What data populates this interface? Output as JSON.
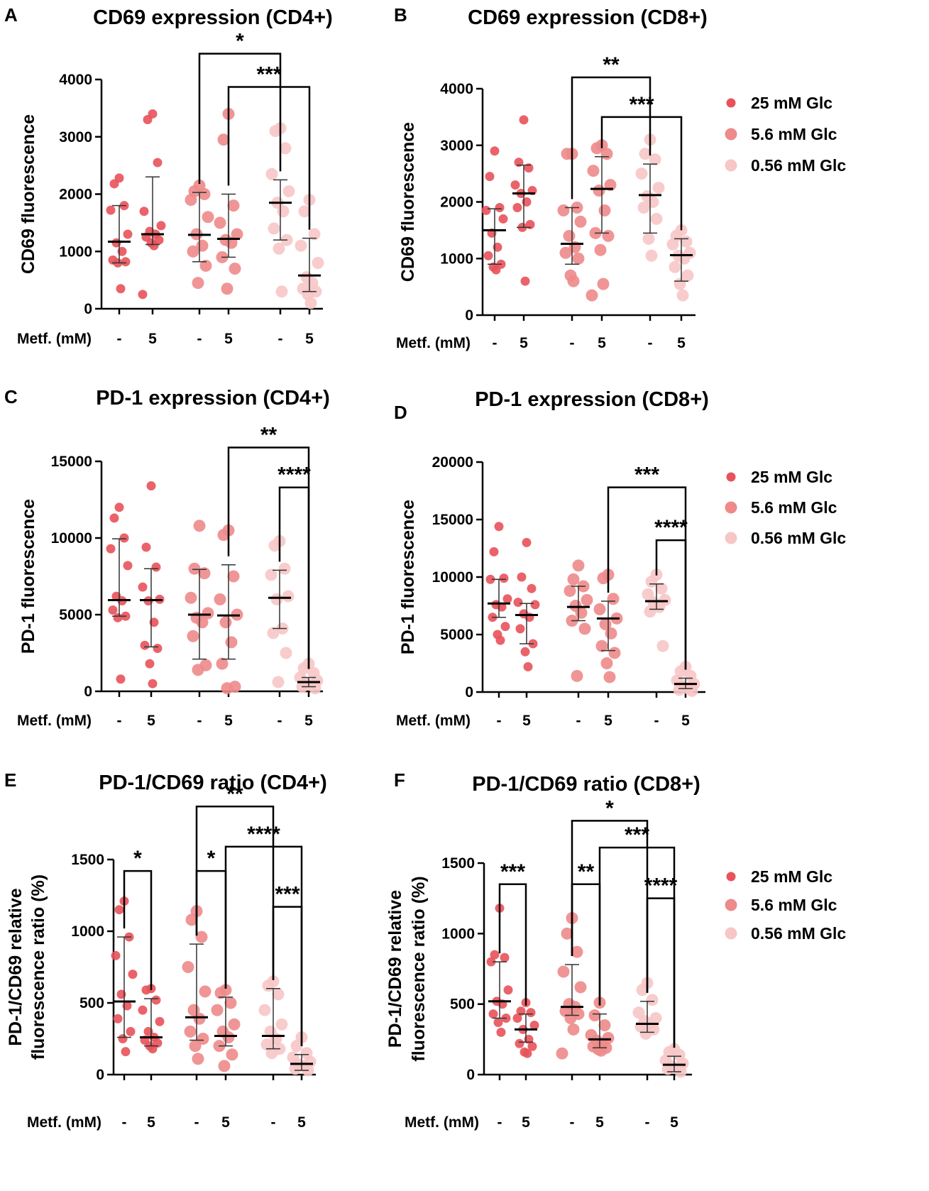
{
  "colors": {
    "g25": "#e8525a",
    "g56": "#ee8a8a",
    "g056": "#f7c6c6",
    "median": "#000000",
    "err": "#333333"
  },
  "legend": {
    "items": [
      {
        "label": "25 mM Glc",
        "color": "#e8525a"
      },
      {
        "label": "5.6 mM Glc",
        "color": "#ee8a8a"
      },
      {
        "label": "0.56 mM Glc",
        "color": "#f7c6c6"
      }
    ]
  },
  "chart_data": [
    {
      "type": "scatter",
      "letter": "A",
      "title": "CD69 expression (CD4+)",
      "ylabel": "CD69 fluorescence",
      "ylabel2": "",
      "ylim": [
        0,
        4000
      ],
      "yticks": [
        0,
        1000,
        2000,
        3000,
        4000
      ],
      "yticklabels": [
        "0",
        "1000",
        "2000",
        "3000",
        "4000"
      ],
      "metf_label": "Metf. (mM)",
      "categories": [
        "-",
        "5",
        "-",
        "5",
        "-",
        "5"
      ],
      "groups": [
        {
          "glc": "25 mM Glc",
          "metf": "-",
          "median": 1170,
          "err": [
            800,
            1800
          ],
          "points": [
            2280,
            2180,
            1800,
            1720,
            1300,
            1150,
            1000,
            850,
            820,
            800,
            350
          ]
        },
        {
          "glc": "25 mM Glc",
          "metf": "5",
          "median": 1300,
          "err": [
            1120,
            2300
          ],
          "points": [
            3400,
            3300,
            2550,
            1700,
            1450,
            1350,
            1300,
            1250,
            1200,
            1150,
            1100,
            250
          ]
        },
        {
          "glc": "5.6 mM Glc",
          "metf": "-",
          "median": 1290,
          "err": [
            820,
            2030
          ],
          "points": [
            2150,
            2050,
            2000,
            1900,
            1600,
            1300,
            1100,
            1000,
            750,
            450
          ]
        },
        {
          "glc": "5.6 mM Glc",
          "metf": "5",
          "median": 1220,
          "err": [
            900,
            2000
          ],
          "points": [
            3400,
            2950,
            1800,
            1500,
            1300,
            1200,
            1150,
            900,
            700,
            350
          ]
        },
        {
          "glc": "0.56 mM Glc",
          "metf": "-",
          "median": 1850,
          "err": [
            1200,
            2250
          ],
          "points": [
            3150,
            3100,
            2800,
            2350,
            2050,
            1850,
            1700,
            1400,
            1200,
            1050,
            300
          ]
        },
        {
          "glc": "0.56 mM Glc",
          "metf": "5",
          "median": 580,
          "err": [
            300,
            1230
          ],
          "points": [
            1900,
            1700,
            1300,
            1100,
            800,
            550,
            450,
            350,
            300,
            250,
            100
          ]
        }
      ],
      "brackets": [
        {
          "from": 2,
          "to": 4,
          "y": 4450,
          "label": "*"
        },
        {
          "from": 3,
          "to": 5,
          "y": 3870,
          "label": "***"
        }
      ],
      "legend": false
    },
    {
      "type": "scatter",
      "letter": "B",
      "title": "CD69 expression (CD8+)",
      "ylabel": "CD69 fluorescence",
      "ylabel2": "",
      "ylim": [
        0,
        4000
      ],
      "yticks": [
        0,
        1000,
        2000,
        3000,
        4000
      ],
      "yticklabels": [
        "0",
        "1000",
        "2000",
        "3000",
        "4000"
      ],
      "metf_label": "Metf. (mM)",
      "categories": [
        "-",
        "5",
        "-",
        "5",
        "-",
        "5"
      ],
      "groups": [
        {
          "glc": "25 mM Glc",
          "metf": "-",
          "median": 1500,
          "err": [
            900,
            1880
          ],
          "points": [
            2900,
            2450,
            1900,
            1850,
            1700,
            1450,
            1200,
            1050,
            900,
            850,
            800
          ]
        },
        {
          "glc": "25 mM Glc",
          "metf": "5",
          "median": 2150,
          "err": [
            1550,
            2650
          ],
          "points": [
            3450,
            2700,
            2600,
            2300,
            2200,
            2150,
            2000,
            1900,
            1600,
            1550,
            600
          ]
        },
        {
          "glc": "5.6 mM Glc",
          "metf": "-",
          "median": 1260,
          "err": [
            900,
            1900
          ],
          "points": [
            2850,
            2850,
            1900,
            1850,
            1650,
            1400,
            1200,
            1100,
            1000,
            700,
            600
          ]
        },
        {
          "glc": "5.6 mM Glc",
          "metf": "5",
          "median": 2230,
          "err": [
            1450,
            2800
          ],
          "points": [
            3000,
            2950,
            2850,
            2550,
            2300,
            2200,
            1850,
            1450,
            1400,
            1150,
            550,
            350
          ]
        },
        {
          "glc": "0.56 mM Glc",
          "metf": "-",
          "median": 2120,
          "err": [
            1450,
            2670
          ],
          "points": [
            3100,
            2850,
            2750,
            2500,
            2250,
            2100,
            2000,
            1900,
            1700,
            1350,
            1050
          ]
        },
        {
          "glc": "0.56 mM Glc",
          "metf": "5",
          "median": 1060,
          "err": [
            600,
            1350
          ],
          "points": [
            1500,
            1400,
            1300,
            1250,
            1100,
            1050,
            1000,
            850,
            700,
            550,
            350
          ]
        }
      ],
      "brackets": [
        {
          "from": 2,
          "to": 4,
          "y": 4200,
          "label": "**"
        },
        {
          "from": 3,
          "to": 5,
          "y": 3500,
          "label": "***"
        }
      ],
      "legend": true
    },
    {
      "type": "scatter",
      "letter": "C",
      "title": "PD-1 expression (CD4+)",
      "ylabel": "PD-1 fluorescence",
      "ylabel2": "",
      "ylim": [
        0,
        15000
      ],
      "yticks": [
        0,
        5000,
        10000,
        15000
      ],
      "yticklabels": [
        "0",
        "5000",
        "10000",
        "15000"
      ],
      "metf_label": "Metf. (mM)",
      "categories": [
        "-",
        "5",
        "-",
        "5",
        "-",
        "5"
      ],
      "groups": [
        {
          "glc": "25 mM Glc",
          "metf": "-",
          "median": 5950,
          "err": [
            4900,
            9950
          ],
          "points": [
            12000,
            11300,
            10000,
            9300,
            8200,
            6200,
            5900,
            5300,
            4900,
            4800,
            800
          ]
        },
        {
          "glc": "25 mM Glc",
          "metf": "5",
          "median": 5950,
          "err": [
            2900,
            8000
          ],
          "points": [
            13400,
            9400,
            8100,
            6800,
            6000,
            5900,
            4500,
            3000,
            2800,
            1800,
            500
          ]
        },
        {
          "glc": "5.6 mM Glc",
          "metf": "-",
          "median": 5000,
          "err": [
            2100,
            7950
          ],
          "points": [
            10800,
            8000,
            7700,
            6100,
            5100,
            4800,
            4500,
            3600,
            1700,
            1400
          ]
        },
        {
          "glc": "5.6 mM Glc",
          "metf": "5",
          "median": 4950,
          "err": [
            2100,
            8250
          ],
          "points": [
            10500,
            10200,
            7500,
            6000,
            5000,
            4500,
            3200,
            1800,
            300,
            200
          ]
        },
        {
          "glc": "0.56 mM Glc",
          "metf": "-",
          "median": 6100,
          "err": [
            4100,
            7900
          ],
          "points": [
            9800,
            9500,
            8000,
            7600,
            6200,
            6000,
            4100,
            3800,
            2500,
            600
          ]
        },
        {
          "glc": "0.56 mM Glc",
          "metf": "5",
          "median": 600,
          "err": [
            300,
            900
          ],
          "points": [
            1800,
            1500,
            1200,
            900,
            700,
            500,
            400,
            300,
            200
          ]
        }
      ],
      "brackets": [
        {
          "from": 3,
          "to": 5,
          "y": 15900,
          "label": "**"
        },
        {
          "from": 4,
          "to": 5,
          "y": 13300,
          "label": "****"
        }
      ],
      "legend": false
    },
    {
      "type": "scatter",
      "letter": "D",
      "title": "PD-1 expression (CD8+)",
      "ylabel": "PD-1 fluorescence",
      "ylabel2": "",
      "ylim": [
        0,
        20000
      ],
      "yticks": [
        0,
        5000,
        10000,
        15000,
        20000
      ],
      "yticklabels": [
        "0",
        "5000",
        "10000",
        "15000",
        "20000"
      ],
      "metf_label": "Metf. (mM)",
      "categories": [
        "-",
        "5",
        "-",
        "5",
        "-",
        "5"
      ],
      "groups": [
        {
          "glc": "25 mM Glc",
          "metf": "-",
          "median": 7700,
          "err": [
            6500,
            9800
          ],
          "points": [
            14400,
            12200,
            9900,
            9800,
            8100,
            7600,
            7400,
            6500,
            5700,
            5000,
            4500
          ]
        },
        {
          "glc": "25 mM Glc",
          "metf": "5",
          "median": 6700,
          "err": [
            4200,
            7700
          ],
          "points": [
            13000,
            10000,
            9000,
            7800,
            7600,
            6800,
            6500,
            5500,
            4200,
            3500,
            2200
          ]
        },
        {
          "glc": "5.6 mM Glc",
          "metf": "-",
          "median": 7400,
          "err": [
            6200,
            9200
          ],
          "points": [
            11000,
            9800,
            9200,
            8800,
            8000,
            7500,
            6900,
            6200,
            5500,
            1400
          ]
        },
        {
          "glc": "5.6 mM Glc",
          "metf": "5",
          "median": 6400,
          "err": [
            3600,
            7900
          ],
          "points": [
            10200,
            9900,
            8100,
            7200,
            6400,
            5900,
            5100,
            4000,
            3400,
            2500,
            1300
          ]
        },
        {
          "glc": "0.56 mM Glc",
          "metf": "-",
          "median": 7900,
          "err": [
            7200,
            9400
          ],
          "points": [
            10200,
            9600,
            9000,
            8500,
            8000,
            7800,
            7400,
            7000,
            4000
          ]
        },
        {
          "glc": "0.56 mM Glc",
          "metf": "5",
          "median": 700,
          "err": [
            300,
            1200
          ],
          "points": [
            2200,
            1800,
            1400,
            1000,
            700,
            500,
            300,
            200,
            100
          ]
        }
      ],
      "brackets": [
        {
          "from": 3,
          "to": 5,
          "y": 17800,
          "label": "***"
        },
        {
          "from": 4,
          "to": 5,
          "y": 13200,
          "label": "****"
        }
      ],
      "legend": true
    },
    {
      "type": "scatter",
      "letter": "E",
      "title": "PD-1/CD69 ratio (CD4+)",
      "ylabel": "PD-1/CD69 relative",
      "ylabel2": "fluorescence ratio (%)",
      "ylim": [
        0,
        1500
      ],
      "yticks": [
        0,
        500,
        1000,
        1500
      ],
      "yticklabels": [
        "0",
        "500",
        "1000",
        "1500"
      ],
      "metf_label": "Metf. (mM)",
      "categories": [
        "-",
        "5",
        "-",
        "5",
        "-",
        "5"
      ],
      "groups": [
        {
          "glc": "25 mM Glc",
          "metf": "-",
          "median": 510,
          "err": [
            260,
            960
          ],
          "points": [
            1210,
            1150,
            960,
            830,
            700,
            560,
            480,
            390,
            300,
            250,
            160
          ]
        },
        {
          "glc": "25 mM Glc",
          "metf": "5",
          "median": 260,
          "err": [
            200,
            530
          ],
          "points": [
            600,
            590,
            520,
            450,
            370,
            300,
            260,
            240,
            220,
            200,
            180
          ]
        },
        {
          "glc": "5.6 mM Glc",
          "metf": "-",
          "median": 400,
          "err": [
            240,
            910
          ],
          "points": [
            1140,
            1080,
            960,
            750,
            580,
            450,
            390,
            300,
            250,
            200,
            110
          ]
        },
        {
          "glc": "5.6 mM Glc",
          "metf": "5",
          "median": 270,
          "err": [
            200,
            540
          ],
          "points": [
            590,
            570,
            500,
            450,
            350,
            300,
            260,
            200,
            140,
            60
          ]
        },
        {
          "glc": "0.56 mM Glc",
          "metf": "-",
          "median": 270,
          "err": [
            180,
            600
          ],
          "points": [
            650,
            620,
            560,
            450,
            350,
            300,
            250,
            210,
            180,
            150
          ]
        },
        {
          "glc": "0.56 mM Glc",
          "metf": "5",
          "median": 75,
          "err": [
            30,
            140
          ],
          "points": [
            260,
            200,
            150,
            120,
            90,
            70,
            60,
            40,
            30
          ]
        }
      ],
      "brackets": [
        {
          "from": 0,
          "to": 1,
          "y": 1420,
          "label": "*"
        },
        {
          "from": 2,
          "to": 4,
          "y": 1870,
          "label": "**"
        },
        {
          "from": 3,
          "to": 5,
          "y": 1590,
          "label": "****"
        },
        {
          "from": 2,
          "to": 3,
          "y": 1420,
          "label": "*"
        },
        {
          "from": 4,
          "to": 5,
          "y": 1170,
          "label": "***"
        }
      ],
      "legend": false
    },
    {
      "type": "scatter",
      "letter": "F",
      "title": "PD-1/CD69 ratio (CD8+)",
      "ylabel": "PD-1/CD69 relative",
      "ylabel2": "fluorescence ratio (%)",
      "ylim": [
        0,
        1500
      ],
      "yticks": [
        0,
        500,
        1000,
        1500
      ],
      "yticklabels": [
        "0",
        "500",
        "1000",
        "1500"
      ],
      "metf_label": "Metf. (mM)",
      "categories": [
        "-",
        "5",
        "-",
        "5",
        "-",
        "5"
      ],
      "groups": [
        {
          "glc": "25 mM Glc",
          "metf": "-",
          "median": 520,
          "err": [
            400,
            800
          ],
          "points": [
            1180,
            850,
            830,
            800,
            600,
            520,
            500,
            430,
            400,
            370,
            300
          ]
        },
        {
          "glc": "25 mM Glc",
          "metf": "5",
          "median": 320,
          "err": [
            230,
            430
          ],
          "points": [
            510,
            450,
            440,
            400,
            350,
            320,
            250,
            220,
            200,
            160,
            150
          ]
        },
        {
          "glc": "5.6 mM Glc",
          "metf": "-",
          "median": 480,
          "err": [
            420,
            780
          ],
          "points": [
            1110,
            1000,
            870,
            730,
            620,
            500,
            480,
            450,
            430,
            400,
            320,
            150
          ]
        },
        {
          "glc": "5.6 mM Glc",
          "metf": "5",
          "median": 250,
          "err": [
            190,
            430
          ],
          "points": [
            510,
            420,
            350,
            280,
            260,
            240,
            220,
            200,
            190,
            180,
            170
          ]
        },
        {
          "glc": "0.56 mM Glc",
          "metf": "-",
          "median": 360,
          "err": [
            300,
            520
          ],
          "points": [
            650,
            600,
            530,
            440,
            400,
            380,
            360,
            340,
            320,
            290
          ]
        },
        {
          "glc": "0.56 mM Glc",
          "metf": "5",
          "median": 70,
          "err": [
            20,
            130
          ],
          "points": [
            180,
            160,
            140,
            100,
            80,
            60,
            50,
            40,
            20
          ]
        }
      ],
      "brackets": [
        {
          "from": 0,
          "to": 1,
          "y": 1350,
          "label": "***"
        },
        {
          "from": 2,
          "to": 4,
          "y": 1800,
          "label": "*"
        },
        {
          "from": 3,
          "to": 5,
          "y": 1610,
          "label": "***"
        },
        {
          "from": 2,
          "to": 3,
          "y": 1350,
          "label": "**"
        },
        {
          "from": 4,
          "to": 5,
          "y": 1250,
          "label": "****"
        }
      ],
      "legend": true
    }
  ]
}
